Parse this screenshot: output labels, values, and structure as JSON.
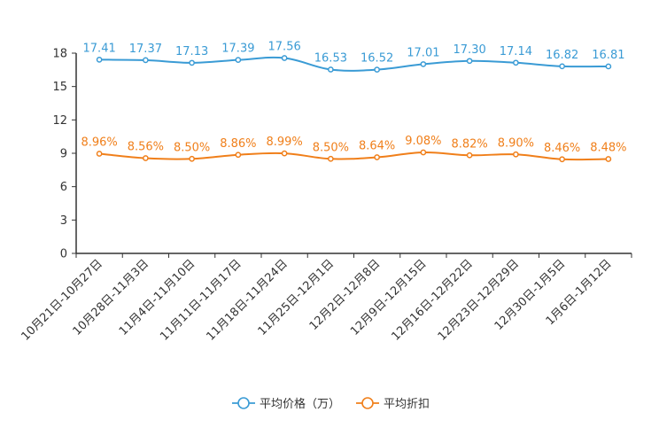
{
  "chart_data": {
    "type": "line",
    "title": "",
    "xlabel": "",
    "ylabel": "",
    "ylim": [
      0,
      18
    ],
    "yticks": [
      0,
      3,
      6,
      9,
      12,
      15,
      18
    ],
    "grid": false,
    "legend_position": "bottom-center",
    "categories": [
      "10月21日-10月27日",
      "10月28日-11月3日",
      "11月4日-11月10日",
      "11月11日-11月17日",
      "11月18日-11月24日",
      "11月25日-12月1日",
      "12月2日-12月8日",
      "12月9日-12月15日",
      "12月16日-12月22日",
      "12月23日-12月29日",
      "12月30日-1月5日",
      "1月6日-1月12日"
    ],
    "series": [
      {
        "name": "平均价格（万）",
        "color": "#3a9bd5",
        "values": [
          17.41,
          17.37,
          17.13,
          17.39,
          17.56,
          16.53,
          16.52,
          17.01,
          17.3,
          17.14,
          16.82,
          16.81
        ],
        "labels": [
          "17.41",
          "17.37",
          "17.13",
          "17.39",
          "17.56",
          "16.53",
          "16.52",
          "17.01",
          "17.30",
          "17.14",
          "16.82",
          "16.81"
        ]
      },
      {
        "name": "平均折扣",
        "color": "#f07f1a",
        "values": [
          8.96,
          8.56,
          8.5,
          8.86,
          8.99,
          8.5,
          8.64,
          9.08,
          8.82,
          8.9,
          8.46,
          8.48
        ],
        "labels": [
          "8.96%",
          "8.56%",
          "8.50%",
          "8.86%",
          "8.99%",
          "8.50%",
          "8.64%",
          "9.08%",
          "8.82%",
          "8.90%",
          "8.46%",
          "8.48%"
        ]
      }
    ]
  }
}
